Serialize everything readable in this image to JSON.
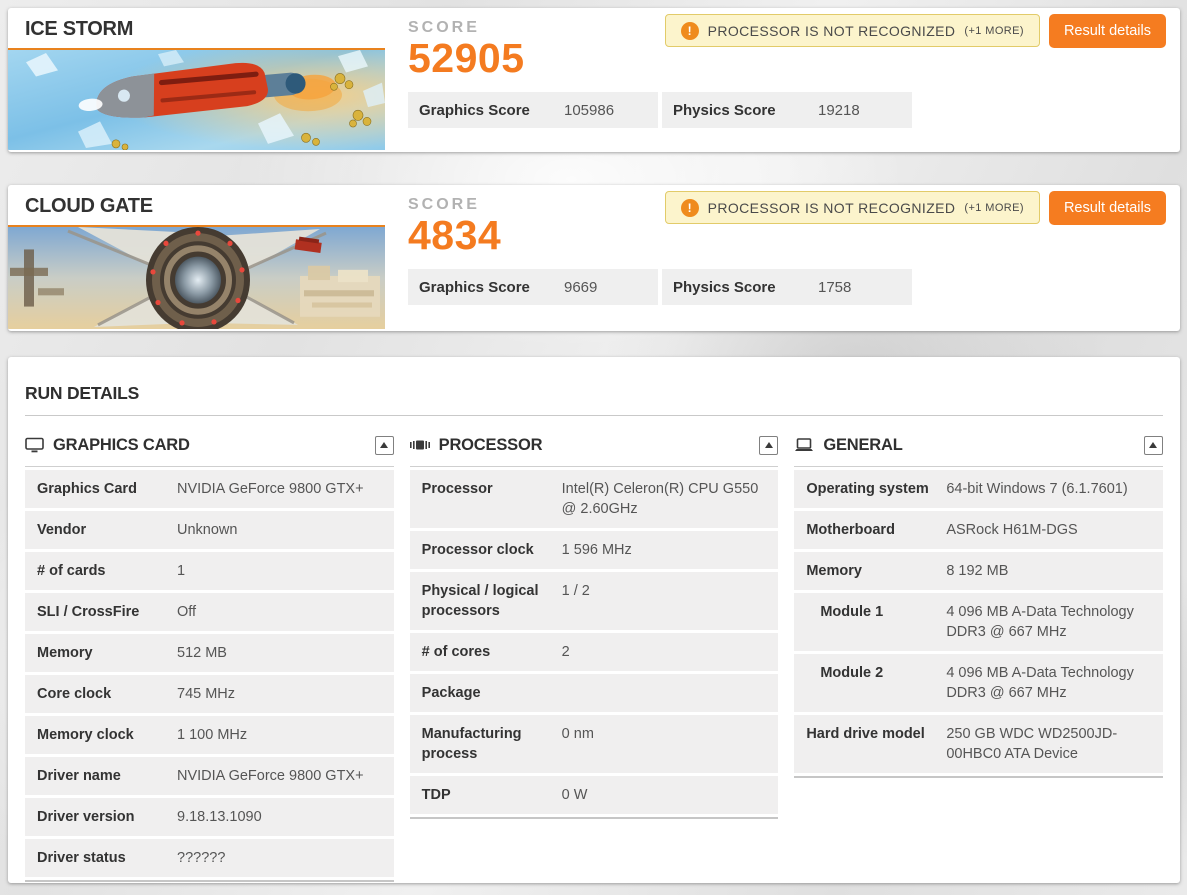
{
  "theme": {
    "accent_orange": "#f57c20",
    "score_orange": "#f47b20",
    "title_underline": "#e8821e",
    "warning_bg": "#fcf4cc",
    "warning_border": "#e2cb69",
    "row_bg": "#f0efef"
  },
  "benchmarks": [
    {
      "name": "ICE STORM",
      "scene": "ice-storm-scene",
      "score_label": "SCORE",
      "score": "52905",
      "warning_icon": "!",
      "warning": "PROCESSOR IS NOT RECOGNIZED",
      "warning_more": "(+1 MORE)",
      "details_button": "Result details",
      "stats": [
        {
          "label": "Graphics Score",
          "value": "105986"
        },
        {
          "label": "Physics Score",
          "value": "19218"
        }
      ]
    },
    {
      "name": "CLOUD GATE",
      "scene": "cloud-gate-scene",
      "score_label": "SCORE",
      "score": "4834",
      "warning_icon": "!",
      "warning": "PROCESSOR IS NOT RECOGNIZED",
      "warning_more": "(+1 MORE)",
      "details_button": "Result details",
      "stats": [
        {
          "label": "Graphics Score",
          "value": "9669"
        },
        {
          "label": "Physics Score",
          "value": "1758"
        }
      ]
    }
  ],
  "run_details": {
    "title": "RUN DETAILS",
    "sections": [
      {
        "title": "GRAPHICS CARD",
        "icon": "monitor-icon",
        "rows": [
          {
            "label": "Graphics Card",
            "value": "NVIDIA GeForce 9800 GTX+"
          },
          {
            "label": "Vendor",
            "value": "Unknown"
          },
          {
            "label": "# of cards",
            "value": "1"
          },
          {
            "label": "SLI / CrossFire",
            "value": "Off"
          },
          {
            "label": "Memory",
            "value": "512 MB"
          },
          {
            "label": "Core clock",
            "value": "745 MHz"
          },
          {
            "label": "Memory clock",
            "value": "1 100 MHz"
          },
          {
            "label": "Driver name",
            "value": "NVIDIA GeForce 9800 GTX+"
          },
          {
            "label": "Driver version",
            "value": "9.18.13.1090"
          },
          {
            "label": "Driver status",
            "value": "??????"
          }
        ]
      },
      {
        "title": "PROCESSOR",
        "icon": "cpu-icon",
        "rows": [
          {
            "label": "Processor",
            "value": "Intel(R) Celeron(R) CPU G550 @ 2.60GHz"
          },
          {
            "label": "Processor clock",
            "value": "1 596 MHz"
          },
          {
            "label": "Physical / logical processors",
            "value": "1 / 2"
          },
          {
            "label": "# of cores",
            "value": "2"
          },
          {
            "label": "Package",
            "value": ""
          },
          {
            "label": "Manufacturing process",
            "value": "0 nm"
          },
          {
            "label": "TDP",
            "value": "0 W"
          }
        ]
      },
      {
        "title": "GENERAL",
        "icon": "laptop-icon",
        "rows": [
          {
            "label": "Operating system",
            "value": "64-bit Windows 7 (6.1.7601)"
          },
          {
            "label": "Motherboard",
            "value": "ASRock H61M-DGS"
          },
          {
            "label": "Memory",
            "value": "8 192 MB"
          },
          {
            "label": "Module 1",
            "value": "4 096 MB A-Data Technology DDR3 @ 667 MHz",
            "indent": true
          },
          {
            "label": "Module 2",
            "value": "4 096 MB A-Data Technology DDR3 @ 667 MHz",
            "indent": true
          },
          {
            "label": "Hard drive model",
            "value": "250 GB WDC WD2500JD-00HBC0 ATA Device"
          }
        ]
      }
    ]
  }
}
